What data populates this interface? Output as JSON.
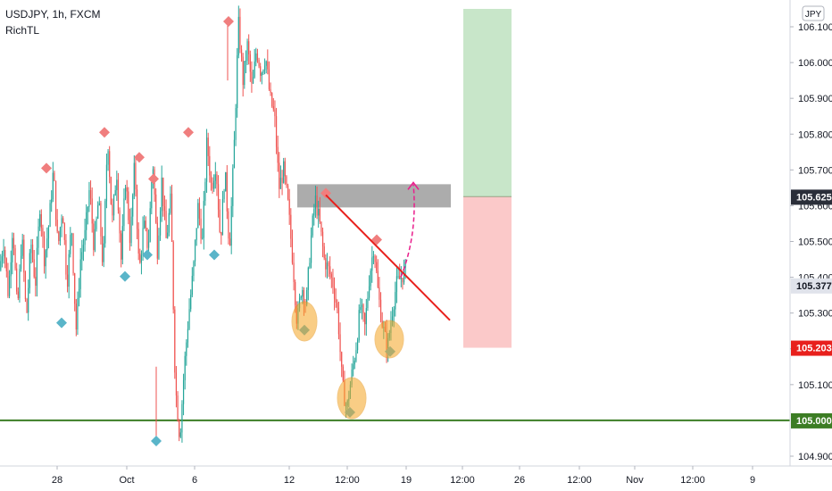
{
  "legend": {
    "title": "USDJPY, 1h, FXCM",
    "indicator": "RichTL",
    "currency_badge": "JPY"
  },
  "colors": {
    "background": "#ffffff",
    "bull": "#26a69a",
    "bear": "#ef5350",
    "marker_high": "#f07e7e",
    "marker_low": "#5ab5c9",
    "support_line": "#3c7d24",
    "trendline": "#e8201c",
    "resistance_zone": "#9e9e9e",
    "target_zone": "#c8e6c9",
    "stop_zone": "#fbc9c9",
    "highlight_circle": "#f5a623",
    "projection_arrow": "#e91e8c",
    "axis_text": "#131722"
  },
  "chart_data": {
    "type": "candlestick",
    "symbol": "USDJPY",
    "timeframe": "1h",
    "source": "FXCM",
    "ylim": [
      104.87,
      106.14
    ],
    "y_ticks": [
      106.1,
      106.0,
      105.9,
      105.8,
      105.7,
      105.6,
      105.5,
      105.4,
      105.3,
      105.2,
      105.1,
      104.9
    ],
    "y_tick_labels": [
      "106.100",
      "106.000",
      "105.900",
      "105.800",
      "105.700",
      "105.600",
      "105.500",
      "105.400",
      "105.300",
      "105.200",
      "105.100",
      "104.900"
    ],
    "x_ticks": [
      "28",
      "Oct",
      "6",
      "12",
      "12:00",
      "19",
      "12:00",
      "26",
      "12:00",
      "Nov",
      "12:00",
      "9"
    ],
    "price_labels": [
      {
        "value": 105.625,
        "text": "105.625",
        "style": "dark"
      },
      {
        "value": 105.377,
        "text": "105.377",
        "style": "light"
      },
      {
        "value": 105.203,
        "text": "105.203",
        "style": "red"
      },
      {
        "value": 105.0,
        "text": "105.000",
        "style": "green"
      }
    ],
    "price_path": [
      105.42,
      105.5,
      105.35,
      105.55,
      105.3,
      105.52,
      105.28,
      105.5,
      105.38,
      105.6,
      105.45,
      105.55,
      105.7,
      105.48,
      105.6,
      105.38,
      105.55,
      105.25,
      105.45,
      105.52,
      105.65,
      105.48,
      105.62,
      105.42,
      105.8,
      105.55,
      105.7,
      105.45,
      105.68,
      105.5,
      105.72,
      105.41,
      105.55,
      105.48,
      105.73,
      105.47,
      105.67,
      105.5,
      105.62,
      105.1,
      104.95,
      105.15,
      105.3,
      105.42,
      105.6,
      105.5,
      105.78,
      105.65,
      105.72,
      105.5,
      105.7,
      105.48,
      105.75,
      106.11,
      105.95,
      106.05,
      105.92,
      106.04,
      105.97,
      106.02,
      105.9,
      105.85,
      105.65,
      105.7,
      105.6,
      105.45,
      105.27,
      105.38,
      105.32,
      105.5,
      105.62,
      105.55,
      105.45,
      105.42,
      105.38,
      105.3,
      105.1,
      105.03,
      105.12,
      105.2,
      105.32,
      105.26,
      105.4,
      105.49,
      105.35,
      105.26,
      105.2,
      105.3,
      105.38,
      105.4,
      105.42
    ],
    "pivot_highs": [
      105.7,
      105.8,
      105.73,
      105.67,
      105.8,
      106.11,
      105.63,
      105.5
    ],
    "pivot_lows": [
      105.28,
      105.41,
      105.47,
      105.47,
      104.95,
      105.26,
      105.03,
      105.2
    ],
    "support_level": 105.0,
    "resistance_zone": [
      105.56,
      105.61
    ],
    "trendline": [
      105.63,
      105.28
    ],
    "target_zone": [
      105.625,
      106.15
    ],
    "stop_zone": [
      105.203,
      105.625
    ],
    "projection_target": 105.66
  }
}
